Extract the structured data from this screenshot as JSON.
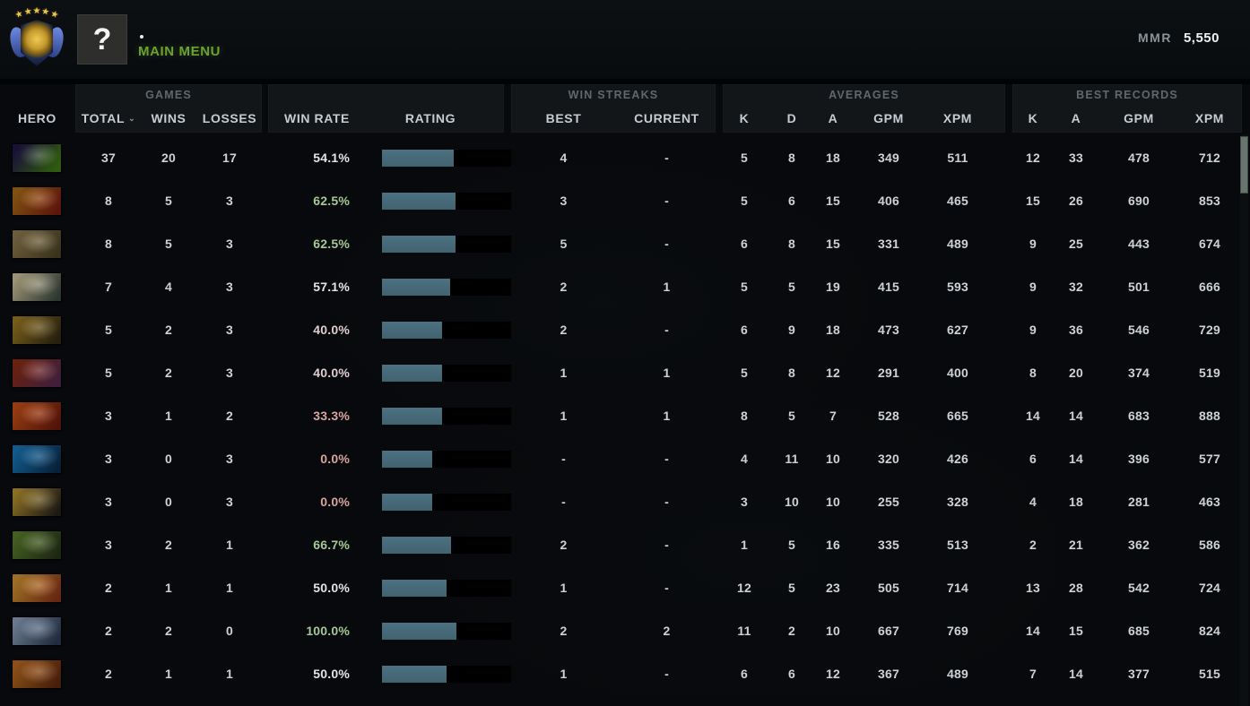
{
  "topbar": {
    "rank_medal": {
      "stars": 5,
      "wing_color": "#5577d8",
      "center_color": "#d4a52c"
    },
    "unknown_hero_label": "?",
    "main_menu_label": "MAIN MENU",
    "mmr_label": "MMR",
    "mmr_value": "5,550"
  },
  "table": {
    "group_labels": {
      "games": "GAMES",
      "win_streaks": "WIN STREAKS",
      "averages": "AVERAGES",
      "best_records": "BEST RECORDS"
    },
    "columns": {
      "hero": "HERO",
      "total": "TOTAL",
      "wins": "WINS",
      "losses": "LOSSES",
      "win_rate": "WIN RATE",
      "rating": "RATING",
      "best": "BEST",
      "current": "CURRENT",
      "k": "K",
      "d": "D",
      "a": "A",
      "gpm": "GPM",
      "xpm": "XPM",
      "rec_k": "K",
      "rec_a": "A",
      "rec_gpm": "GPM",
      "rec_xpm": "XPM"
    },
    "sorted_by": "TOTAL",
    "bar_fill_color": "#456673",
    "win_rate_colors": {
      "green": "#a3c995",
      "neutral": "#e2e5e7",
      "pink": "#e0cdcd",
      "red": "#d9a5a0"
    },
    "rows": [
      {
        "hero": "rubick",
        "portrait": [
          "#221648",
          "#3f7a12"
        ],
        "total": "37",
        "wins": "20",
        "losses": "17",
        "win_rate": "54.1%",
        "win_rate_color": "neutral",
        "rating_fill_pct": 55.5,
        "best_streak": "4",
        "current_streak": "-",
        "avg": {
          "k": "5",
          "d": "8",
          "a": "18",
          "gpm": "349",
          "xpm": "511"
        },
        "best": {
          "k": "12",
          "a": "33",
          "gpm": "478",
          "xpm": "712"
        }
      },
      {
        "hero": "bounty-hunter",
        "portrait": [
          "#a86c16",
          "#7c1d10"
        ],
        "total": "8",
        "wins": "5",
        "losses": "3",
        "win_rate": "62.5%",
        "win_rate_color": "green",
        "rating_fill_pct": 57.0,
        "best_streak": "3",
        "current_streak": "-",
        "avg": {
          "k": "5",
          "d": "6",
          "a": "15",
          "gpm": "406",
          "xpm": "465"
        },
        "best": {
          "k": "15",
          "a": "26",
          "gpm": "690",
          "xpm": "853"
        }
      },
      {
        "hero": "pudge",
        "portrait": [
          "#8f7c4e",
          "#4e4426"
        ],
        "total": "8",
        "wins": "5",
        "losses": "3",
        "win_rate": "62.5%",
        "win_rate_color": "green",
        "rating_fill_pct": 57.0,
        "best_streak": "5",
        "current_streak": "-",
        "avg": {
          "k": "6",
          "d": "8",
          "a": "15",
          "gpm": "331",
          "xpm": "489"
        },
        "best": {
          "k": "9",
          "a": "25",
          "gpm": "443",
          "xpm": "674"
        }
      },
      {
        "hero": "keeper-of-the-light",
        "portrait": [
          "#cfc49a",
          "#3e4a42"
        ],
        "total": "7",
        "wins": "4",
        "losses": "3",
        "win_rate": "57.1%",
        "win_rate_color": "neutral",
        "rating_fill_pct": 52.8,
        "best_streak": "2",
        "current_streak": "1",
        "avg": {
          "k": "5",
          "d": "5",
          "a": "19",
          "gpm": "415",
          "xpm": "593"
        },
        "best": {
          "k": "9",
          "a": "32",
          "gpm": "501",
          "xpm": "666"
        }
      },
      {
        "hero": "bristleback",
        "portrait": [
          "#9c7a24",
          "#342a12"
        ],
        "total": "5",
        "wins": "2",
        "losses": "3",
        "win_rate": "40.0%",
        "win_rate_color": "pink",
        "rating_fill_pct": 46.5,
        "best_streak": "2",
        "current_streak": "-",
        "avg": {
          "k": "6",
          "d": "9",
          "a": "18",
          "gpm": "473",
          "xpm": "627"
        },
        "best": {
          "k": "9",
          "a": "36",
          "gpm": "546",
          "xpm": "729"
        }
      },
      {
        "hero": "night-stalker",
        "portrait": [
          "#8c2c12",
          "#55284e"
        ],
        "total": "5",
        "wins": "2",
        "losses": "3",
        "win_rate": "40.0%",
        "win_rate_color": "pink",
        "rating_fill_pct": 46.5,
        "best_streak": "1",
        "current_streak": "1",
        "avg": {
          "k": "5",
          "d": "8",
          "a": "12",
          "gpm": "291",
          "xpm": "400"
        },
        "best": {
          "k": "8",
          "a": "20",
          "gpm": "374",
          "xpm": "519"
        }
      },
      {
        "hero": "lina",
        "portrait": [
          "#c45016",
          "#6e1a0c"
        ],
        "total": "3",
        "wins": "1",
        "losses": "2",
        "win_rate": "33.3%",
        "win_rate_color": "red",
        "rating_fill_pct": 46.5,
        "best_streak": "1",
        "current_streak": "1",
        "avg": {
          "k": "8",
          "d": "5",
          "a": "7",
          "gpm": "528",
          "xpm": "665"
        },
        "best": {
          "k": "14",
          "a": "14",
          "gpm": "683",
          "xpm": "888"
        }
      },
      {
        "hero": "razor",
        "portrait": [
          "#1878b8",
          "#0a2c4e"
        ],
        "total": "3",
        "wins": "0",
        "losses": "3",
        "win_rate": "0.0%",
        "win_rate_color": "red",
        "rating_fill_pct": 39.0,
        "best_streak": "-",
        "current_streak": "-",
        "avg": {
          "k": "4",
          "d": "11",
          "a": "10",
          "gpm": "320",
          "xpm": "426"
        },
        "best": {
          "k": "6",
          "a": "14",
          "gpm": "396",
          "xpm": "577"
        }
      },
      {
        "hero": "riki",
        "portrait": [
          "#b8922f",
          "#26221c"
        ],
        "total": "3",
        "wins": "0",
        "losses": "3",
        "win_rate": "0.0%",
        "win_rate_color": "red",
        "rating_fill_pct": 39.0,
        "best_streak": "-",
        "current_streak": "-",
        "avg": {
          "k": "3",
          "d": "10",
          "a": "10",
          "gpm": "255",
          "xpm": "328"
        },
        "best": {
          "k": "4",
          "a": "18",
          "gpm": "281",
          "xpm": "463"
        }
      },
      {
        "hero": "natures-prophet",
        "portrait": [
          "#5a7e2a",
          "#27351a"
        ],
        "total": "3",
        "wins": "2",
        "losses": "1",
        "win_rate": "66.7%",
        "win_rate_color": "green",
        "rating_fill_pct": 53.5,
        "best_streak": "2",
        "current_streak": "-",
        "avg": {
          "k": "1",
          "d": "5",
          "a": "16",
          "gpm": "335",
          "xpm": "513"
        },
        "best": {
          "k": "2",
          "a": "21",
          "gpm": "362",
          "xpm": "586"
        }
      },
      {
        "hero": "alchemist",
        "portrait": [
          "#cf9433",
          "#8a3416"
        ],
        "total": "2",
        "wins": "1",
        "losses": "1",
        "win_rate": "50.0%",
        "win_rate_color": "neutral",
        "rating_fill_pct": 50.0,
        "best_streak": "1",
        "current_streak": "-",
        "avg": {
          "k": "12",
          "d": "5",
          "a": "23",
          "gpm": "505",
          "xpm": "714"
        },
        "best": {
          "k": "13",
          "a": "28",
          "gpm": "542",
          "xpm": "724"
        }
      },
      {
        "hero": "drow-ranger",
        "portrait": [
          "#8ba0bc",
          "#2c3a52"
        ],
        "total": "2",
        "wins": "2",
        "losses": "0",
        "win_rate": "100.0%",
        "win_rate_color": "green",
        "rating_fill_pct": 57.6,
        "best_streak": "2",
        "current_streak": "2",
        "avg": {
          "k": "11",
          "d": "2",
          "a": "10",
          "gpm": "667",
          "xpm": "769"
        },
        "best": {
          "k": "14",
          "a": "15",
          "gpm": "685",
          "xpm": "824"
        }
      },
      {
        "hero": "earthshaker",
        "portrait": [
          "#b86a20",
          "#5e280e"
        ],
        "total": "2",
        "wins": "1",
        "losses": "1",
        "win_rate": "50.0%",
        "win_rate_color": "neutral",
        "rating_fill_pct": 50.0,
        "best_streak": "1",
        "current_streak": "-",
        "avg": {
          "k": "6",
          "d": "6",
          "a": "12",
          "gpm": "367",
          "xpm": "489"
        },
        "best": {
          "k": "7",
          "a": "14",
          "gpm": "377",
          "xpm": "515"
        }
      }
    ]
  }
}
